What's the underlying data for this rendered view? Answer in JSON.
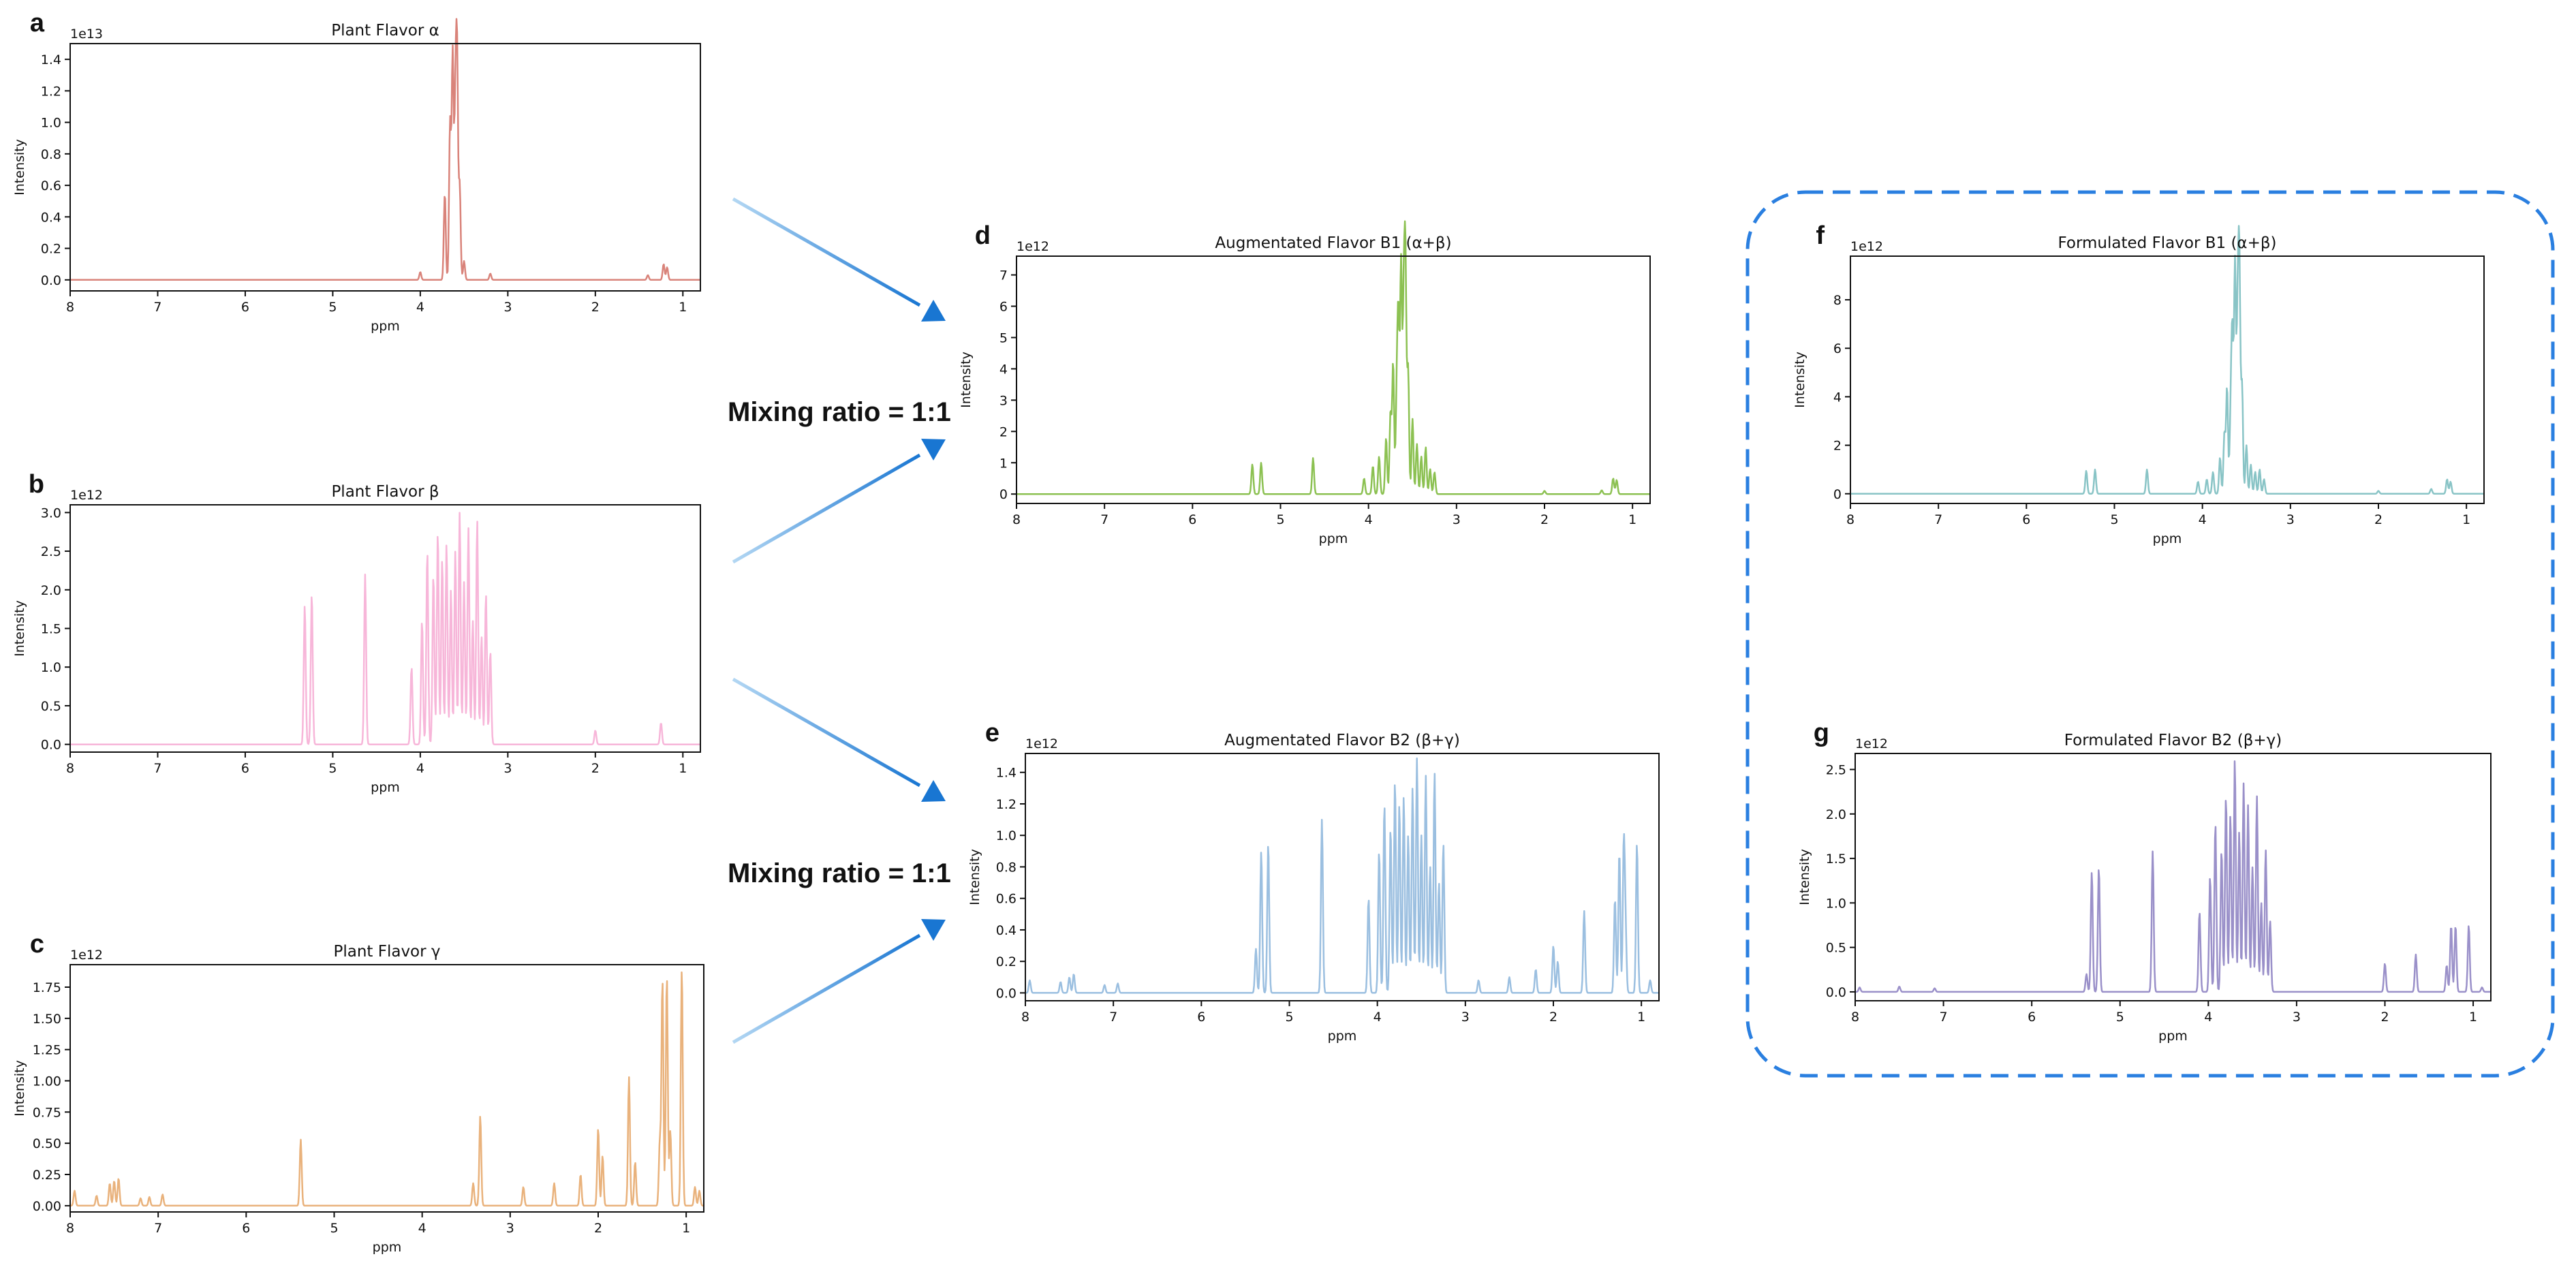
{
  "figure": {
    "mixing_label_top": "Mixing ratio = 1:1",
    "mixing_label_bottom": "Mixing ratio = 1:1",
    "arrow_color": "#1976d2",
    "highlight_box_color": "#2a7fe0"
  },
  "chart_data": [
    {
      "id": "a",
      "letter": "a",
      "type": "line",
      "title": "Plant Flavor α",
      "xlabel": "ppm",
      "ylabel": "Intensity",
      "multiplier": "1e13",
      "color": "#d9837a",
      "xlim": [
        8.0,
        0.8
      ],
      "ylim": [
        -0.07,
        1.5
      ],
      "xticks": [
        8,
        7,
        6,
        5,
        4,
        3,
        2,
        1
      ],
      "yticks": [
        0.0,
        0.2,
        0.4,
        0.6,
        0.8,
        1.0,
        1.2,
        1.4
      ],
      "ytick_labels": [
        "0.0",
        "0.2",
        "0.4",
        "0.6",
        "0.8",
        "1.0",
        "1.2",
        "1.4"
      ],
      "peaks": [
        [
          3.72,
          0.55
        ],
        [
          3.66,
          1.0
        ],
        [
          3.63,
          1.44
        ],
        [
          3.6,
          1.05
        ],
        [
          3.58,
          1.38
        ],
        [
          3.55,
          0.6
        ],
        [
          3.5,
          0.12
        ],
        [
          3.2,
          0.04
        ],
        [
          4.0,
          0.05
        ],
        [
          1.22,
          0.1
        ],
        [
          1.18,
          0.08
        ],
        [
          1.4,
          0.03
        ]
      ]
    },
    {
      "id": "b",
      "letter": "b",
      "type": "line",
      "title": "Plant Flavor β",
      "xlabel": "ppm",
      "ylabel": "Intensity",
      "multiplier": "1e12",
      "color": "#f7b6d9",
      "xlim": [
        8.0,
        0.8
      ],
      "ylim": [
        -0.1,
        3.1
      ],
      "xticks": [
        8,
        7,
        6,
        5,
        4,
        3,
        2,
        1
      ],
      "yticks": [
        0.0,
        0.5,
        1.0,
        1.5,
        2.0,
        2.5,
        3.0
      ],
      "ytick_labels": [
        "0.0",
        "0.5",
        "1.0",
        "1.5",
        "2.0",
        "2.5",
        "3.0"
      ],
      "peaks": [
        [
          5.32,
          1.8
        ],
        [
          5.24,
          1.95
        ],
        [
          4.63,
          2.2
        ],
        [
          4.1,
          1.0
        ],
        [
          3.98,
          1.6
        ],
        [
          3.92,
          2.5
        ],
        [
          3.85,
          2.2
        ],
        [
          3.8,
          2.75
        ],
        [
          3.75,
          2.4
        ],
        [
          3.7,
          2.6
        ],
        [
          3.65,
          2.0
        ],
        [
          3.6,
          2.5
        ],
        [
          3.55,
          3.0
        ],
        [
          3.5,
          2.1
        ],
        [
          3.45,
          2.8
        ],
        [
          3.4,
          1.6
        ],
        [
          3.35,
          2.9
        ],
        [
          3.3,
          1.4
        ],
        [
          3.25,
          1.95
        ],
        [
          3.2,
          1.2
        ],
        [
          2.0,
          0.18
        ],
        [
          1.25,
          0.28
        ]
      ]
    },
    {
      "id": "c",
      "letter": "c",
      "type": "line",
      "title": "Plant Flavor γ",
      "xlabel": "ppm",
      "ylabel": "Intensity",
      "multiplier": "1e12",
      "color": "#e9b27c",
      "xlim": [
        8.0,
        0.8
      ],
      "ylim": [
        -0.05,
        1.93
      ],
      "xticks": [
        8,
        7,
        6,
        5,
        4,
        3,
        2,
        1
      ],
      "yticks": [
        0.0,
        0.25,
        0.5,
        0.75,
        1.0,
        1.25,
        1.5,
        1.75
      ],
      "ytick_labels": [
        "0.00",
        "0.25",
        "0.50",
        "0.75",
        "1.00",
        "1.25",
        "1.50",
        "1.75"
      ],
      "peaks": [
        [
          7.95,
          0.12
        ],
        [
          7.7,
          0.08
        ],
        [
          7.55,
          0.18
        ],
        [
          7.5,
          0.2
        ],
        [
          7.45,
          0.22
        ],
        [
          7.2,
          0.06
        ],
        [
          7.1,
          0.07
        ],
        [
          6.95,
          0.09
        ],
        [
          5.38,
          0.53
        ],
        [
          3.42,
          0.18
        ],
        [
          3.34,
          0.72
        ],
        [
          2.85,
          0.15
        ],
        [
          2.5,
          0.18
        ],
        [
          2.2,
          0.25
        ],
        [
          2.0,
          0.62
        ],
        [
          1.95,
          0.4
        ],
        [
          1.65,
          1.03
        ],
        [
          1.58,
          0.35
        ],
        [
          1.3,
          0.5
        ],
        [
          1.27,
          1.8
        ],
        [
          1.22,
          1.84
        ],
        [
          1.18,
          0.6
        ],
        [
          1.05,
          1.9
        ],
        [
          0.9,
          0.15
        ],
        [
          0.85,
          0.12
        ]
      ]
    },
    {
      "id": "d",
      "letter": "d",
      "type": "line",
      "title": "Augmentated Flavor B1 (α+β)",
      "xlabel": "ppm",
      "ylabel": "Intensity",
      "multiplier": "1e12",
      "color": "#8cc152",
      "xlim": [
        8.0,
        0.8
      ],
      "ylim": [
        -0.3,
        7.6
      ],
      "xticks": [
        8,
        7,
        6,
        5,
        4,
        3,
        2,
        1
      ],
      "yticks": [
        0,
        1,
        2,
        3,
        4,
        5,
        6,
        7
      ],
      "ytick_labels": [
        "0",
        "1",
        "2",
        "3",
        "4",
        "5",
        "6",
        "7"
      ],
      "peaks": [
        [
          5.32,
          0.95
        ],
        [
          5.22,
          1.0
        ],
        [
          4.63,
          1.15
        ],
        [
          4.05,
          0.5
        ],
        [
          3.95,
          0.9
        ],
        [
          3.88,
          1.2
        ],
        [
          3.8,
          1.8
        ],
        [
          3.75,
          2.6
        ],
        [
          3.72,
          4.2
        ],
        [
          3.68,
          3.0
        ],
        [
          3.66,
          5.5
        ],
        [
          3.63,
          7.4
        ],
        [
          3.6,
          5.8
        ],
        [
          3.58,
          7.1
        ],
        [
          3.55,
          4.0
        ],
        [
          3.5,
          2.4
        ],
        [
          3.45,
          1.6
        ],
        [
          3.4,
          1.2
        ],
        [
          3.35,
          1.5
        ],
        [
          3.3,
          0.8
        ],
        [
          3.25,
          0.7
        ],
        [
          2.0,
          0.1
        ],
        [
          1.35,
          0.12
        ],
        [
          1.22,
          0.5
        ],
        [
          1.18,
          0.45
        ]
      ]
    },
    {
      "id": "e",
      "letter": "e",
      "type": "line",
      "title": "Augmentated Flavor B2 (β+γ)",
      "xlabel": "ppm",
      "ylabel": "Intensity",
      "multiplier": "1e12",
      "color": "#9bbfe0",
      "xlim": [
        8.0,
        0.8
      ],
      "ylim": [
        -0.05,
        1.52
      ],
      "xticks": [
        8,
        7,
        6,
        5,
        4,
        3,
        2,
        1
      ],
      "yticks": [
        0.0,
        0.2,
        0.4,
        0.6,
        0.8,
        1.0,
        1.2,
        1.4
      ],
      "ytick_labels": [
        "0.0",
        "0.2",
        "0.4",
        "0.6",
        "0.8",
        "1.0",
        "1.2",
        "1.4"
      ],
      "peaks": [
        [
          7.95,
          0.08
        ],
        [
          7.6,
          0.07
        ],
        [
          7.5,
          0.1
        ],
        [
          7.45,
          0.12
        ],
        [
          7.1,
          0.05
        ],
        [
          6.95,
          0.06
        ],
        [
          5.38,
          0.28
        ],
        [
          5.32,
          0.9
        ],
        [
          5.24,
          0.95
        ],
        [
          4.63,
          1.1
        ],
        [
          4.1,
          0.6
        ],
        [
          3.98,
          0.9
        ],
        [
          3.92,
          1.2
        ],
        [
          3.85,
          1.05
        ],
        [
          3.8,
          1.35
        ],
        [
          3.75,
          1.2
        ],
        [
          3.7,
          1.25
        ],
        [
          3.65,
          1.0
        ],
        [
          3.6,
          1.3
        ],
        [
          3.55,
          1.49
        ],
        [
          3.5,
          1.0
        ],
        [
          3.45,
          1.38
        ],
        [
          3.4,
          0.8
        ],
        [
          3.35,
          1.4
        ],
        [
          3.3,
          0.7
        ],
        [
          3.25,
          0.95
        ],
        [
          2.85,
          0.08
        ],
        [
          2.5,
          0.1
        ],
        [
          2.2,
          0.15
        ],
        [
          2.0,
          0.3
        ],
        [
          1.95,
          0.2
        ],
        [
          1.65,
          0.52
        ],
        [
          1.3,
          0.6
        ],
        [
          1.25,
          0.9
        ],
        [
          1.2,
          0.93
        ],
        [
          1.18,
          0.4
        ],
        [
          1.05,
          0.95
        ],
        [
          0.9,
          0.08
        ]
      ]
    },
    {
      "id": "f",
      "letter": "f",
      "type": "line",
      "title": "Formulated Flavor B1 (α+β)",
      "xlabel": "ppm",
      "ylabel": "Intensity",
      "multiplier": "1e12",
      "color": "#89c4c6",
      "xlim": [
        8.0,
        0.8
      ],
      "ylim": [
        -0.4,
        9.8
      ],
      "xticks": [
        8,
        7,
        6,
        5,
        4,
        3,
        2,
        1
      ],
      "yticks": [
        0,
        2,
        4,
        6,
        8
      ],
      "ytick_labels": [
        "0",
        "2",
        "4",
        "6",
        "8"
      ],
      "peaks": [
        [
          5.32,
          0.95
        ],
        [
          5.22,
          1.0
        ],
        [
          4.63,
          1.0
        ],
        [
          4.05,
          0.5
        ],
        [
          3.95,
          0.6
        ],
        [
          3.88,
          0.9
        ],
        [
          3.8,
          1.5
        ],
        [
          3.75,
          2.5
        ],
        [
          3.72,
          4.4
        ],
        [
          3.68,
          3.0
        ],
        [
          3.66,
          6.5
        ],
        [
          3.63,
          9.5
        ],
        [
          3.6,
          7.0
        ],
        [
          3.58,
          9.2
        ],
        [
          3.55,
          4.5
        ],
        [
          3.5,
          2.0
        ],
        [
          3.45,
          1.2
        ],
        [
          3.4,
          0.9
        ],
        [
          3.35,
          1.0
        ],
        [
          3.3,
          0.6
        ],
        [
          2.0,
          0.12
        ],
        [
          1.4,
          0.2
        ],
        [
          1.22,
          0.6
        ],
        [
          1.18,
          0.5
        ]
      ]
    },
    {
      "id": "g",
      "letter": "g",
      "type": "line",
      "title": "Formulated Flavor B2 (β+γ)",
      "xlabel": "ppm",
      "ylabel": "Intensity",
      "multiplier": "1e12",
      "color": "#9a90c9",
      "xlim": [
        8.0,
        0.8
      ],
      "ylim": [
        -0.1,
        2.68
      ],
      "xticks": [
        8,
        7,
        6,
        5,
        4,
        3,
        2,
        1
      ],
      "yticks": [
        0.0,
        0.5,
        1.0,
        1.5,
        2.0,
        2.5
      ],
      "ytick_labels": [
        "0.0",
        "0.5",
        "1.0",
        "1.5",
        "2.0",
        "2.5"
      ],
      "peaks": [
        [
          7.95,
          0.05
        ],
        [
          7.5,
          0.06
        ],
        [
          7.1,
          0.04
        ],
        [
          5.38,
          0.2
        ],
        [
          5.32,
          1.35
        ],
        [
          5.24,
          1.4
        ],
        [
          4.63,
          1.58
        ],
        [
          4.1,
          0.9
        ],
        [
          3.98,
          1.3
        ],
        [
          3.92,
          1.9
        ],
        [
          3.85,
          1.6
        ],
        [
          3.8,
          2.2
        ],
        [
          3.75,
          2.0
        ],
        [
          3.7,
          2.62
        ],
        [
          3.65,
          1.8
        ],
        [
          3.6,
          2.35
        ],
        [
          3.55,
          2.1
        ],
        [
          3.5,
          1.4
        ],
        [
          3.45,
          2.2
        ],
        [
          3.4,
          1.0
        ],
        [
          3.35,
          1.6
        ],
        [
          3.3,
          0.8
        ],
        [
          2.0,
          0.32
        ],
        [
          1.65,
          0.42
        ],
        [
          1.3,
          0.3
        ],
        [
          1.25,
          0.75
        ],
        [
          1.2,
          0.75
        ],
        [
          1.05,
          0.75
        ],
        [
          0.9,
          0.05
        ]
      ]
    }
  ]
}
